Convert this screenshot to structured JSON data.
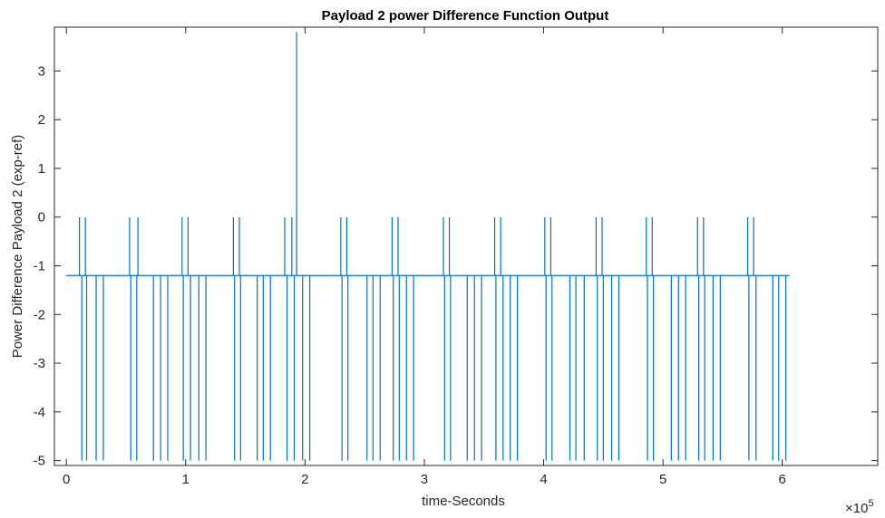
{
  "chart_data": {
    "type": "line",
    "title": "Payload 2 power Difference Function Output",
    "xlabel": "time-Seconds",
    "ylabel": "Power Difference Payload 2 (exp-ref)",
    "x_exponent_base": "×10",
    "x_exponent_power": "5",
    "xlim": [
      -0.1,
      6.8
    ],
    "ylim": [
      -5.1,
      3.9
    ],
    "x_ticks": [
      0,
      1,
      2,
      3,
      4,
      5,
      6
    ],
    "x_tick_labels": [
      "0",
      "1",
      "2",
      "3",
      "4",
      "5",
      "6"
    ],
    "y_ticks": [
      3,
      2,
      1,
      0,
      -1,
      -2,
      -3,
      -4,
      -5
    ],
    "y_tick_labels": [
      "3",
      "2",
      "1",
      "0",
      "-1",
      "-2",
      "-3",
      "-4",
      "-5"
    ],
    "grid": false,
    "line_color": "#0072BD",
    "series": [
      {
        "baseline": -1.2,
        "x_start": 0.0,
        "x_end": 6.06,
        "spikes": [
          {
            "x": 0.11,
            "y": 0.0
          },
          {
            "x": 0.13,
            "y": -5.0
          },
          {
            "x": 0.17,
            "y": -5.0
          },
          {
            "x": 0.16,
            "y": 0.0
          },
          {
            "x": 0.25,
            "y": -5.0
          },
          {
            "x": 0.31,
            "y": -5.0
          },
          {
            "x": 0.53,
            "y": 0.0
          },
          {
            "x": 0.54,
            "y": -5.0
          },
          {
            "x": 0.59,
            "y": -5.0
          },
          {
            "x": 0.6,
            "y": 0.0
          },
          {
            "x": 0.73,
            "y": -5.0
          },
          {
            "x": 0.79,
            "y": -5.0
          },
          {
            "x": 0.85,
            "y": -5.0
          },
          {
            "x": 0.97,
            "y": 0.0
          },
          {
            "x": 0.98,
            "y": -5.0
          },
          {
            "x": 1.02,
            "y": 0.0
          },
          {
            "x": 1.04,
            "y": -5.0
          },
          {
            "x": 1.11,
            "y": -5.0
          },
          {
            "x": 1.17,
            "y": -5.0
          },
          {
            "x": 1.4,
            "y": 0.0
          },
          {
            "x": 1.41,
            "y": -5.0
          },
          {
            "x": 1.45,
            "y": 0.0
          },
          {
            "x": 1.46,
            "y": -5.0
          },
          {
            "x": 1.6,
            "y": -5.0
          },
          {
            "x": 1.65,
            "y": -5.0
          },
          {
            "x": 1.71,
            "y": -5.0
          },
          {
            "x": 1.83,
            "y": 0.0
          },
          {
            "x": 1.85,
            "y": -5.0
          },
          {
            "x": 1.89,
            "y": 0.0
          },
          {
            "x": 1.91,
            "y": -5.0
          },
          {
            "x": 1.93,
            "y": 3.8
          },
          {
            "x": 1.98,
            "y": -5.0
          },
          {
            "x": 2.04,
            "y": -5.0
          },
          {
            "x": 2.3,
            "y": 0.0
          },
          {
            "x": 2.31,
            "y": -5.0
          },
          {
            "x": 2.35,
            "y": 0.0
          },
          {
            "x": 2.36,
            "y": -5.0
          },
          {
            "x": 2.52,
            "y": -5.0
          },
          {
            "x": 2.57,
            "y": -5.0
          },
          {
            "x": 2.63,
            "y": -5.0
          },
          {
            "x": 2.73,
            "y": 0.0
          },
          {
            "x": 2.74,
            "y": -5.0
          },
          {
            "x": 2.78,
            "y": 0.0
          },
          {
            "x": 2.79,
            "y": -5.0
          },
          {
            "x": 2.85,
            "y": -5.0
          },
          {
            "x": 2.91,
            "y": -5.0
          },
          {
            "x": 3.16,
            "y": 0.0
          },
          {
            "x": 3.17,
            "y": -5.0
          },
          {
            "x": 3.21,
            "y": 0.0
          },
          {
            "x": 3.22,
            "y": -5.0
          },
          {
            "x": 3.36,
            "y": -5.0
          },
          {
            "x": 3.42,
            "y": -5.0
          },
          {
            "x": 3.48,
            "y": -5.0
          },
          {
            "x": 3.59,
            "y": 0.0
          },
          {
            "x": 3.6,
            "y": -5.0
          },
          {
            "x": 3.64,
            "y": 0.0
          },
          {
            "x": 3.66,
            "y": -5.0
          },
          {
            "x": 3.72,
            "y": -5.0
          },
          {
            "x": 3.78,
            "y": -5.0
          },
          {
            "x": 4.01,
            "y": 0.0
          },
          {
            "x": 4.02,
            "y": -5.0
          },
          {
            "x": 4.06,
            "y": 0.0
          },
          {
            "x": 4.07,
            "y": -5.0
          },
          {
            "x": 4.22,
            "y": -5.0
          },
          {
            "x": 4.27,
            "y": -5.0
          },
          {
            "x": 4.34,
            "y": -5.0
          },
          {
            "x": 4.44,
            "y": 0.0
          },
          {
            "x": 4.45,
            "y": -5.0
          },
          {
            "x": 4.49,
            "y": 0.0
          },
          {
            "x": 4.5,
            "y": -5.0
          },
          {
            "x": 4.57,
            "y": -5.0
          },
          {
            "x": 4.63,
            "y": -5.0
          },
          {
            "x": 4.86,
            "y": 0.0
          },
          {
            "x": 4.87,
            "y": -5.0
          },
          {
            "x": 4.91,
            "y": 0.0
          },
          {
            "x": 4.92,
            "y": -5.0
          },
          {
            "x": 5.07,
            "y": -5.0
          },
          {
            "x": 5.13,
            "y": -5.0
          },
          {
            "x": 5.19,
            "y": -5.0
          },
          {
            "x": 5.29,
            "y": 0.0
          },
          {
            "x": 5.3,
            "y": -5.0
          },
          {
            "x": 5.34,
            "y": 0.0
          },
          {
            "x": 5.35,
            "y": -5.0
          },
          {
            "x": 5.42,
            "y": -5.0
          },
          {
            "x": 5.48,
            "y": -5.0
          },
          {
            "x": 5.71,
            "y": 0.0
          },
          {
            "x": 5.72,
            "y": -5.0
          },
          {
            "x": 5.76,
            "y": 0.0
          },
          {
            "x": 5.78,
            "y": -5.0
          },
          {
            "x": 5.92,
            "y": -5.0
          },
          {
            "x": 5.97,
            "y": -5.0
          },
          {
            "x": 6.03,
            "y": -5.0
          }
        ]
      }
    ]
  }
}
